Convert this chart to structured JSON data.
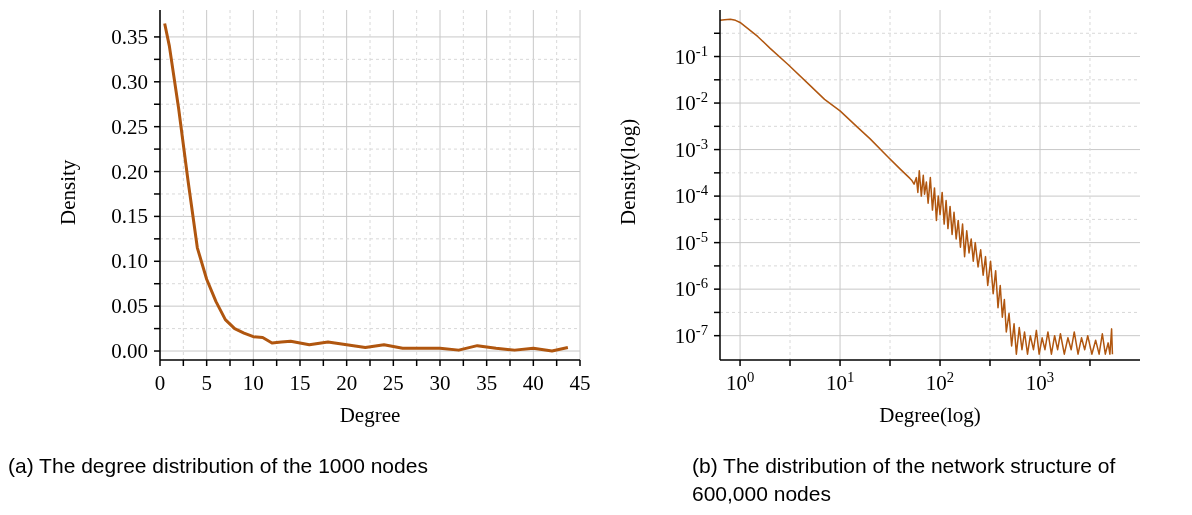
{
  "chart_data": [
    {
      "type": "line",
      "xlabel": "Degree",
      "ylabel": "Density",
      "annotations": [
        "(a) The degree distribution of the 1000 nodes"
      ],
      "x": [
        0.5,
        1,
        2,
        3,
        4,
        5,
        6,
        7,
        8,
        9,
        10,
        11,
        12,
        13,
        14,
        16,
        18,
        20,
        22,
        24,
        26,
        28,
        30,
        32,
        34,
        36,
        38,
        40,
        42,
        43.7
      ],
      "series": [
        {
          "color": "#b0560f",
          "values": [
            0.365,
            0.34,
            0.27,
            0.19,
            0.115,
            0.08,
            0.055,
            0.035,
            0.025,
            0.02,
            0.016,
            0.015,
            0.009,
            0.01,
            0.011,
            0.007,
            0.01,
            0.007,
            0.004,
            0.007,
            0.003,
            0.003,
            0.003,
            0.001,
            0.006,
            0.003,
            0.001,
            0.003,
            0.0,
            0.004
          ]
        }
      ],
      "xlim": [
        0,
        45
      ],
      "xticks": [
        0,
        {
          "value": 2.5,
          "label": null
        },
        5,
        {
          "value": 7.5,
          "label": null
        },
        10,
        {
          "value": 12.5,
          "label": null
        },
        15,
        {
          "value": 17.5,
          "label": null
        },
        20,
        {
          "value": 22.5,
          "label": null
        },
        25,
        {
          "value": 27.5,
          "label": null
        },
        30,
        {
          "value": 32.5,
          "label": null
        },
        35,
        {
          "value": 37.5,
          "label": null
        },
        40,
        {
          "value": 42.5,
          "label": null
        },
        45
      ],
      "ylim": [
        -0.01,
        0.38
      ],
      "yticks": [
        {
          "value": 0,
          "label": "0.00"
        },
        {
          "value": 0.025,
          "label": null
        },
        {
          "value": 0.05,
          "label": "0.05"
        },
        {
          "value": 0.075,
          "label": null
        },
        {
          "value": 0.1,
          "label": "0.10"
        },
        {
          "value": 0.125,
          "label": null
        },
        {
          "value": 0.15,
          "label": "0.15"
        },
        {
          "value": 0.175,
          "label": null
        },
        {
          "value": 0.2,
          "label": "0.20"
        },
        {
          "value": 0.225,
          "label": null
        },
        {
          "value": 0.25,
          "label": "0.25"
        },
        {
          "value": 0.275,
          "label": null
        },
        {
          "value": 0.3,
          "label": "0.30"
        },
        {
          "value": 0.325,
          "label": null
        },
        {
          "value": 0.35,
          "label": "0.35"
        }
      ],
      "grid": true,
      "marker": "none",
      "line_style": "solid",
      "legend": false
    },
    {
      "type": "line",
      "xlabel": "Degree(log)",
      "ylabel": "Density(log)",
      "annotations": [
        "(b) The distribution of the network structure of 600,000 nodes"
      ],
      "log": "xy",
      "x": [
        0.63,
        0.7,
        0.8,
        0.9,
        1,
        1.5,
        2,
        3,
        5,
        7,
        10,
        15,
        20,
        30,
        40,
        50,
        52,
        55,
        58,
        60,
        62,
        65,
        68,
        70,
        73,
        76,
        80,
        84,
        88,
        92,
        96,
        100,
        105,
        110,
        115,
        120,
        126,
        132,
        138,
        145,
        152,
        160,
        168,
        176,
        185,
        195,
        205,
        215,
        225,
        240,
        255,
        270,
        285,
        300,
        320,
        340,
        360,
        380,
        400,
        420,
        440,
        460,
        490,
        520,
        550,
        580,
        620,
        660,
        700,
        750,
        800,
        860,
        920,
        980,
        1050,
        1120,
        1200,
        1300,
        1400,
        1500,
        1600,
        1750,
        1900,
        2050,
        2200,
        2400,
        2600,
        2800,
        3000,
        3300,
        3600,
        3900,
        4200,
        4500,
        4800,
        5000,
        5200,
        5300
      ],
      "series": [
        {
          "color": "#b0560f",
          "values": [
            0.6,
            0.62,
            0.63,
            0.6,
            0.54,
            0.27,
            0.15,
            0.068,
            0.024,
            0.012,
            0.0068,
            0.003,
            0.0017,
            0.0007,
            0.00038,
            0.00024,
            0.00022,
            0.00018,
            0.00025,
            0.00012,
            0.00035,
            0.0001,
            0.00028,
            0.00011,
            0.0002,
            7e-05,
            0.00025,
            5e-05,
            0.00015,
            3e-05,
            0.0001,
            4e-05,
            0.00012,
            2.5e-05,
            8e-05,
            2e-05,
            6e-05,
            1.5e-05,
            4.5e-05,
            1.2e-05,
            3e-05,
            8e-06,
            2.5e-05,
            5e-06,
            1.8e-05,
            6e-06,
            1.2e-05,
            4e-06,
            1e-05,
            3e-06,
            7e-06,
            2e-06,
            5e-06,
            1.2e-06,
            4e-06,
            8e-07,
            2.5e-06,
            4e-07,
            1.2e-06,
            2.5e-07,
            6e-07,
            1.2e-07,
            3e-07,
            6e-08,
            1.8e-07,
            4e-08,
            1.5e-07,
            5e-08,
            1.2e-07,
            4e-08,
            1e-07,
            5e-08,
            1.3e-07,
            4e-08,
            9e-08,
            5e-08,
            1.2e-07,
            4e-08,
            1e-07,
            5e-08,
            1.1e-07,
            4e-08,
            9e-08,
            5e-08,
            1.2e-07,
            4e-08,
            9e-08,
            5e-08,
            1e-07,
            4e-08,
            8e-08,
            4e-08,
            1.1e-07,
            4e-08,
            7e-08,
            4e-08,
            1.4e-07,
            4e-08
          ]
        }
      ],
      "xlim": [
        0.63,
        10000
      ],
      "xticks": [
        {
          "value": 1,
          "label": "10$^{0}$"
        },
        {
          "value": 3.16,
          "label": null
        },
        {
          "value": 10,
          "label": "10$^{1}$"
        },
        {
          "value": 31.6,
          "label": null
        },
        {
          "value": 100,
          "label": "10$^{2}$"
        },
        {
          "value": 316,
          "label": null
        },
        {
          "value": 1000,
          "label": "10$^{3}$"
        },
        {
          "value": 3160,
          "label": null
        }
      ],
      "ylim": [
        3e-08,
        1
      ],
      "yticks": [
        {
          "value": 1e-07,
          "label": "10$^{-7}$"
        },
        {
          "value": 3.16e-07,
          "label": null
        },
        {
          "value": 1e-06,
          "label": "10$^{-6}$"
        },
        {
          "value": 3.16e-06,
          "label": null
        },
        {
          "value": 1e-05,
          "label": "10$^{-5}$"
        },
        {
          "value": 3.16e-05,
          "label": null
        },
        {
          "value": 0.0001,
          "label": "10$^{-4}$"
        },
        {
          "value": 0.000316,
          "label": null
        },
        {
          "value": 0.001,
          "label": "10$^{-3}$"
        },
        {
          "value": 0.00316,
          "label": null
        },
        {
          "value": 0.01,
          "label": "10$^{-2}$"
        },
        {
          "value": 0.0316,
          "label": null
        },
        {
          "value": 0.1,
          "label": "10$^{-1}$"
        },
        {
          "value": 0.316,
          "label": null
        }
      ],
      "grid": true,
      "marker": "none",
      "line_style": "solid",
      "legend": false
    }
  ]
}
